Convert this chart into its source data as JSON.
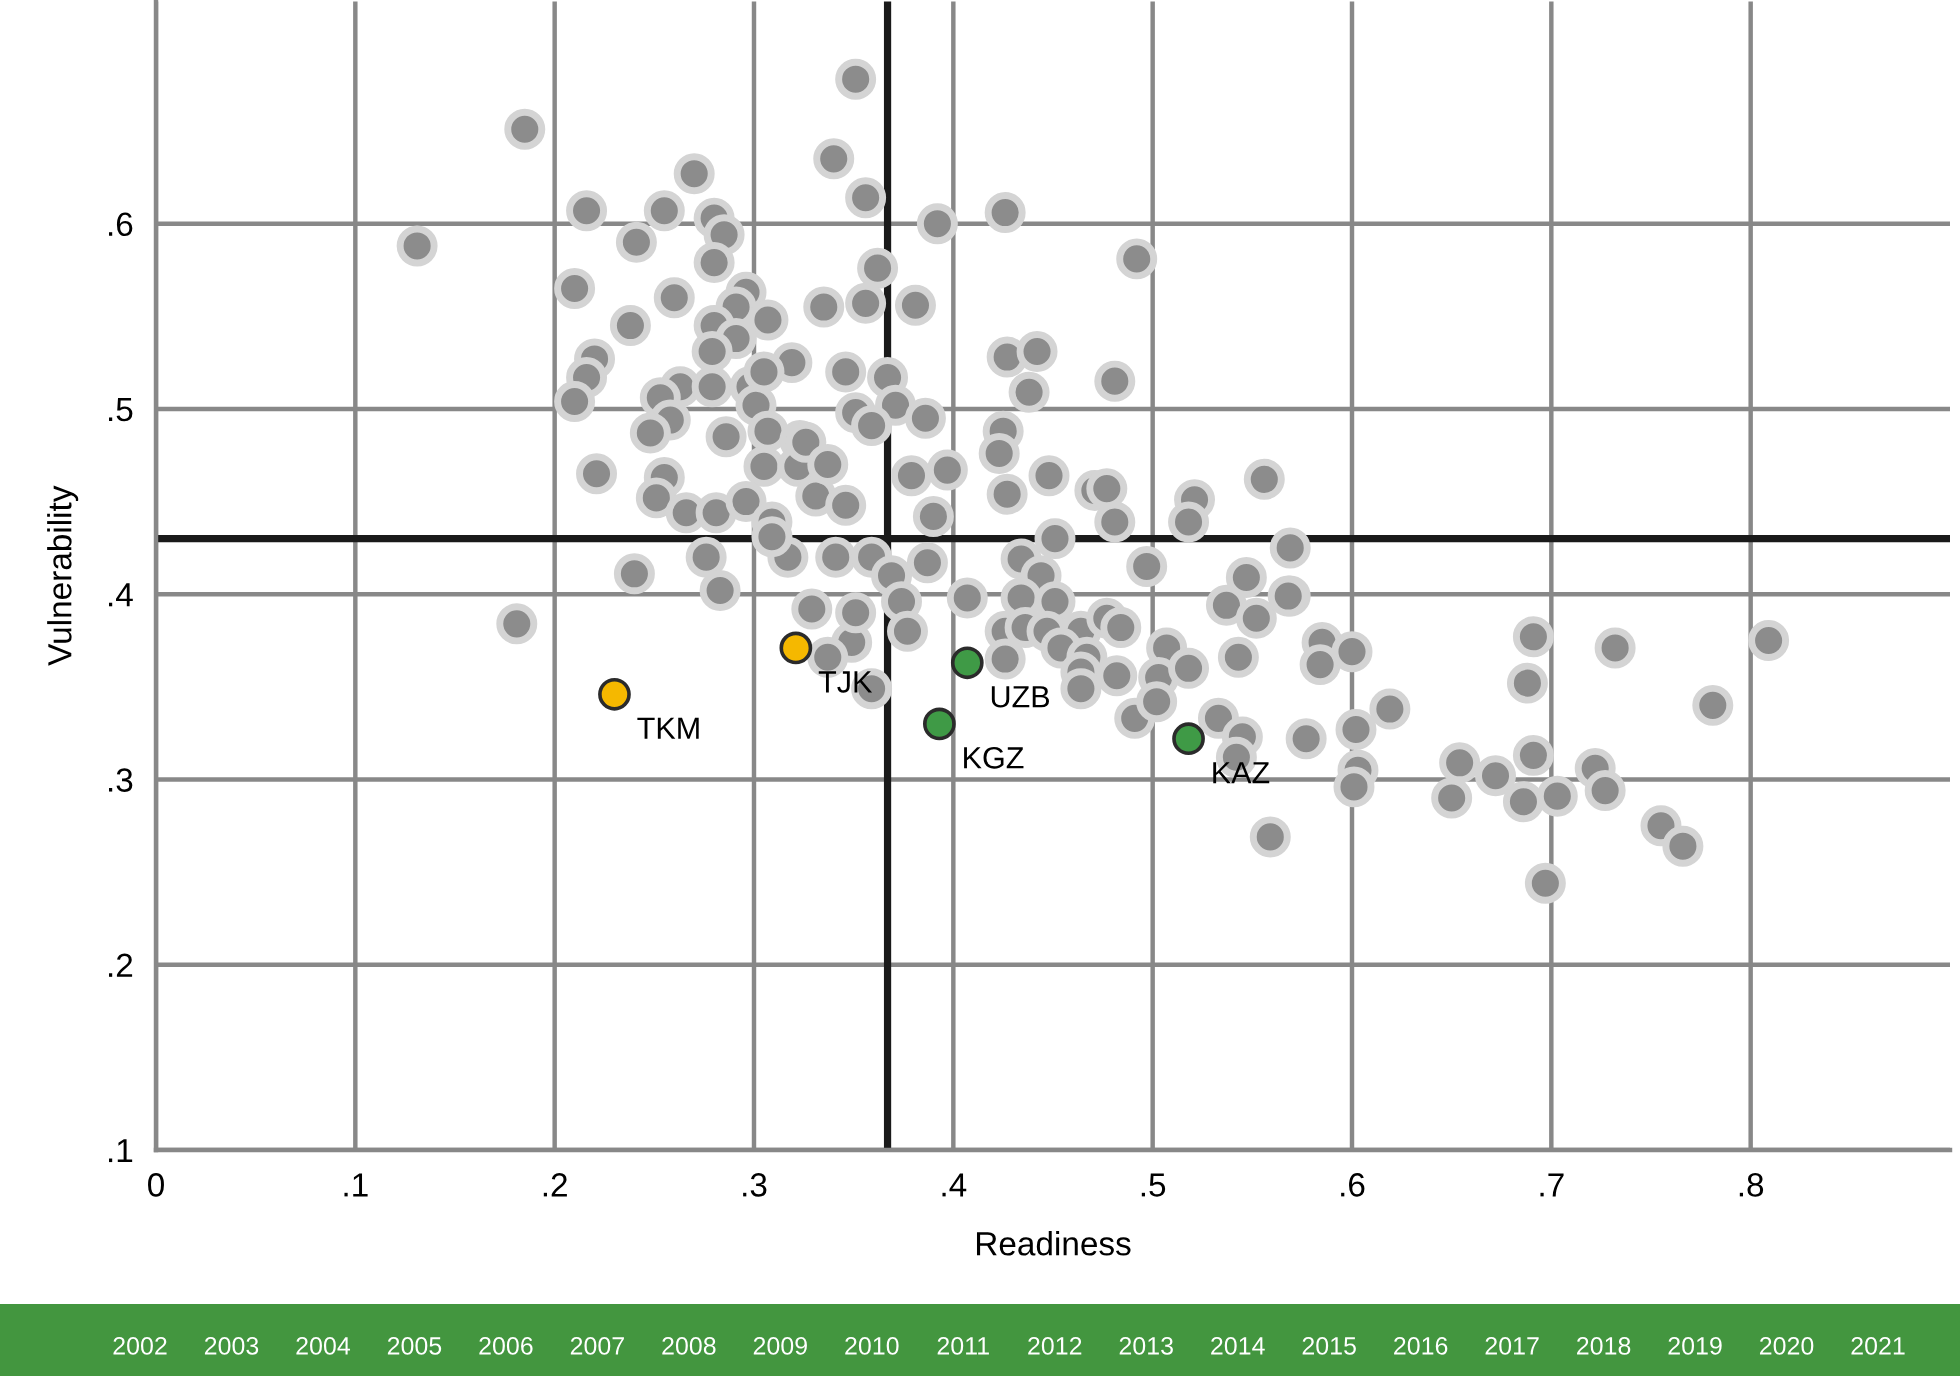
{
  "chart_data": {
    "type": "scatter",
    "xlabel": "Readiness",
    "ylabel": "Vulnerability",
    "xlim": [
      0,
      0.9
    ],
    "ylim": [
      0.1,
      0.72
    ],
    "xticks": [
      0,
      {
        "value": 0.1,
        "label": ".1"
      },
      {
        "value": 0.2,
        "label": ".2"
      },
      {
        "value": 0.3,
        "label": ".3"
      },
      {
        "value": 0.4,
        "label": ".4"
      },
      {
        "value": 0.5,
        "label": ".5"
      },
      {
        "value": 0.6,
        "label": ".6"
      },
      {
        "value": 0.7,
        "label": ".7"
      },
      {
        "value": 0.8,
        "label": ".8"
      }
    ],
    "yticks": [
      {
        "value": 0.1,
        "label": ".1"
      },
      {
        "value": 0.2,
        "label": ".2"
      },
      {
        "value": 0.3,
        "label": ".3"
      },
      {
        "value": 0.4,
        "label": ".4"
      },
      {
        "value": 0.5,
        "label": ".5"
      },
      {
        "value": 0.6,
        "label": ".6"
      }
    ],
    "grid": true,
    "marker": "circle",
    "legend": false,
    "ref_lines": [
      {
        "axis": "x",
        "value": 0.367,
        "color": "#1a1a1a"
      },
      {
        "axis": "y",
        "value": 0.43,
        "color": "#1a1a1a"
      }
    ],
    "series": [
      {
        "color": "#8c8c8c",
        "x": [
          0.131,
          0.185,
          0.181,
          0.216,
          0.255,
          0.27,
          0.28,
          0.285,
          0.241,
          0.28,
          0.21,
          0.26,
          0.238,
          0.296,
          0.291,
          0.307,
          0.28,
          0.291,
          0.279,
          0.319,
          0.22,
          0.216,
          0.21,
          0.263,
          0.253,
          0.279,
          0.298,
          0.305,
          0.301,
          0.258,
          0.248,
          0.286,
          0.307,
          0.323,
          0.305,
          0.322,
          0.221,
          0.255,
          0.251,
          0.266,
          0.281,
          0.296,
          0.309,
          0.331,
          0.34,
          0.351,
          0.356,
          0.392,
          0.426,
          0.492,
          0.362,
          0.335,
          0.356,
          0.381,
          0.346,
          0.367,
          0.371,
          0.351,
          0.359,
          0.386,
          0.427,
          0.442,
          0.438,
          0.481,
          0.425,
          0.423,
          0.326,
          0.337,
          0.346,
          0.379,
          0.397,
          0.427,
          0.448,
          0.471,
          0.477,
          0.481,
          0.39,
          0.521,
          0.556,
          0.518,
          0.569,
          0.569,
          0.585,
          0.584,
          0.6,
          0.577,
          0.602,
          0.619,
          0.603,
          0.601,
          0.691,
          0.688,
          0.732,
          0.809,
          0.781,
          0.654,
          0.65,
          0.672,
          0.686,
          0.691,
          0.703,
          0.722,
          0.727,
          0.755,
          0.766,
          0.697,
          0.559,
          0.24,
          0.276,
          0.283,
          0.317,
          0.309,
          0.329,
          0.341,
          0.359,
          0.387,
          0.369,
          0.374,
          0.377,
          0.349,
          0.351,
          0.359,
          0.337,
          0.407,
          0.434,
          0.444,
          0.451,
          0.497,
          0.434,
          0.451,
          0.426,
          0.436,
          0.447,
          0.464,
          0.477,
          0.484,
          0.454,
          0.467,
          0.464,
          0.464,
          0.482,
          0.426,
          0.507,
          0.503,
          0.518,
          0.491,
          0.502,
          0.533,
          0.545,
          0.542,
          0.543,
          0.537,
          0.552,
          0.547,
          0.568
        ],
        "values": [
          0.588,
          0.651,
          0.384,
          0.607,
          0.607,
          0.627,
          0.603,
          0.594,
          0.59,
          0.579,
          0.565,
          0.56,
          0.545,
          0.563,
          0.555,
          0.548,
          0.545,
          0.538,
          0.531,
          0.525,
          0.527,
          0.517,
          0.504,
          0.512,
          0.506,
          0.512,
          0.512,
          0.52,
          0.502,
          0.494,
          0.487,
          0.485,
          0.488,
          0.483,
          0.469,
          0.469,
          0.465,
          0.463,
          0.452,
          0.444,
          0.444,
          0.45,
          0.439,
          0.453,
          0.635,
          0.678,
          0.614,
          0.6,
          0.606,
          0.581,
          0.576,
          0.555,
          0.557,
          0.556,
          0.52,
          0.517,
          0.502,
          0.498,
          0.491,
          0.495,
          0.528,
          0.531,
          0.509,
          0.515,
          0.488,
          0.476,
          0.482,
          0.47,
          0.448,
          0.464,
          0.467,
          0.454,
          0.464,
          0.456,
          0.457,
          0.439,
          0.442,
          0.451,
          0.462,
          0.439,
          0.425,
          0.399,
          0.374,
          0.362,
          0.369,
          0.322,
          0.327,
          0.338,
          0.305,
          0.296,
          0.377,
          0.352,
          0.371,
          0.375,
          0.34,
          0.309,
          0.29,
          0.302,
          0.288,
          0.313,
          0.291,
          0.306,
          0.294,
          0.275,
          0.264,
          0.244,
          0.269,
          0.411,
          0.42,
          0.402,
          0.42,
          0.431,
          0.392,
          0.42,
          0.42,
          0.417,
          0.41,
          0.396,
          0.38,
          0.374,
          0.39,
          0.349,
          0.366,
          0.398,
          0.419,
          0.41,
          0.43,
          0.415,
          0.398,
          0.396,
          0.38,
          0.382,
          0.38,
          0.38,
          0.387,
          0.382,
          0.371,
          0.366,
          0.358,
          0.349,
          0.356,
          0.365,
          0.371,
          0.355,
          0.36,
          0.333,
          0.342,
          0.333,
          0.323,
          0.312,
          0.366,
          0.394,
          0.387,
          0.409,
          0.399
        ]
      },
      {
        "color": "#f5b800",
        "x": [
          0.23,
          0.321
        ],
        "values": [
          0.346,
          0.371
        ]
      },
      {
        "color": "#3f9a46",
        "x": [
          0.407,
          0.393,
          0.518
        ],
        "values": [
          0.363,
          0.33,
          0.322
        ]
      }
    ],
    "annotations": [
      {
        "text": "TKM",
        "x": 0.23,
        "y": 0.346
      },
      {
        "text": "TJK",
        "x": 0.321,
        "y": 0.371
      },
      {
        "text": "UZB",
        "x": 0.407,
        "y": 0.363
      },
      {
        "text": "KGZ",
        "x": 0.393,
        "y": 0.33
      },
      {
        "text": "KAZ",
        "x": 0.518,
        "y": 0.322
      },
      "2002",
      "2003",
      "2004",
      "2005",
      "2006",
      "2007",
      "2008",
      "2009",
      "2010",
      "2011",
      "2012",
      "2013",
      "2014",
      "2015",
      "2016",
      "2017",
      "2018",
      "2019",
      "2020",
      "2021"
    ]
  }
}
